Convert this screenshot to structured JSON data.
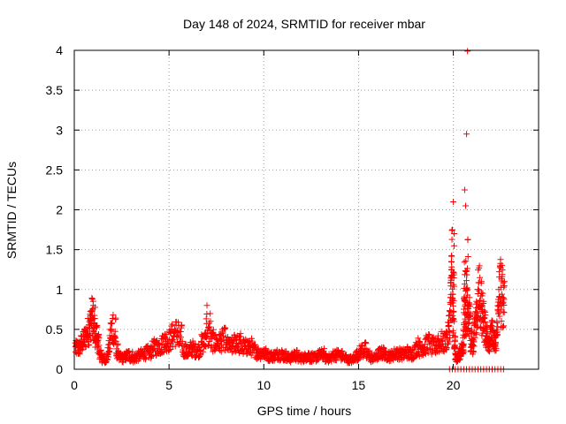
{
  "chart_data": {
    "type": "scatter",
    "title": "Day 148 of 2024, SRMTID for receiver mbar",
    "xlabel": "GPS time / hours",
    "ylabel": "SRMTID / TECUs",
    "xlim": [
      0,
      24.5
    ],
    "ylim": [
      0,
      4
    ],
    "xticks": [
      0,
      5,
      10,
      15,
      20
    ],
    "xtick_labels": [
      "0",
      "5",
      "10",
      "15",
      "20"
    ],
    "yticks": [
      0,
      0.5,
      1,
      1.5,
      2,
      2.5,
      3,
      3.5,
      4
    ],
    "ytick_labels": [
      "0",
      "0.5",
      "1",
      "1.5",
      "2",
      "2.5",
      "3",
      "3.5",
      "4"
    ],
    "grid": true,
    "marker": "+",
    "color": "#ff0000",
    "series": [
      {
        "name": "SRMTID",
        "x": [
          0.05,
          0.2,
          0.35,
          0.5,
          0.65,
          0.8,
          0.9,
          1.0,
          1.1,
          1.2,
          1.3,
          1.45,
          1.6,
          1.75,
          1.9,
          2.05,
          2.2,
          2.35,
          2.5,
          2.7,
          2.9,
          3.1,
          3.3,
          3.5,
          3.7,
          3.9,
          4.1,
          4.3,
          4.5,
          4.7,
          4.9,
          5.1,
          5.3,
          5.5,
          5.7,
          5.9,
          6.1,
          6.3,
          6.5,
          6.7,
          6.9,
          7.0,
          7.2,
          7.4,
          7.6,
          7.8,
          8.0,
          8.2,
          8.4,
          8.6,
          8.8,
          9.0,
          9.2,
          9.4,
          9.6,
          9.8,
          10.0,
          10.2,
          10.4,
          10.6,
          10.8,
          11.0,
          11.2,
          11.4,
          11.6,
          11.8,
          12.0,
          12.2,
          12.4,
          12.6,
          12.8,
          13.0,
          13.2,
          13.4,
          13.6,
          13.8,
          14.0,
          14.2,
          14.4,
          14.6,
          14.8,
          15.0,
          15.2,
          15.4,
          15.6,
          15.8,
          16.0,
          16.2,
          16.4,
          16.6,
          16.8,
          17.0,
          17.2,
          17.4,
          17.6,
          17.8,
          18.0,
          18.2,
          18.4,
          18.6,
          18.8,
          19.0,
          19.2,
          19.4,
          19.6,
          19.75,
          19.85,
          19.9,
          19.95,
          20.0,
          20.05,
          20.1,
          20.2,
          20.3,
          20.4,
          20.5,
          20.55,
          20.6,
          20.65,
          20.7,
          20.75,
          20.8,
          20.9,
          21.0,
          21.1,
          21.2,
          21.3,
          21.4,
          21.5,
          21.6,
          21.7,
          21.8,
          21.9,
          22.0,
          22.1,
          22.2,
          22.3,
          22.4,
          22.5,
          22.6,
          22.7
        ],
        "y": [
          0.33,
          0.28,
          0.35,
          0.42,
          0.5,
          0.6,
          0.72,
          0.8,
          0.45,
          0.55,
          0.3,
          0.18,
          0.12,
          0.2,
          0.5,
          0.68,
          0.35,
          0.2,
          0.15,
          0.18,
          0.22,
          0.15,
          0.18,
          0.2,
          0.25,
          0.22,
          0.28,
          0.35,
          0.3,
          0.42,
          0.38,
          0.45,
          0.5,
          0.55,
          0.35,
          0.22,
          0.28,
          0.3,
          0.25,
          0.35,
          0.4,
          0.8,
          0.38,
          0.42,
          0.35,
          0.45,
          0.4,
          0.3,
          0.35,
          0.42,
          0.32,
          0.3,
          0.35,
          0.28,
          0.25,
          0.22,
          0.25,
          0.2,
          0.18,
          0.2,
          0.22,
          0.2,
          0.18,
          0.15,
          0.22,
          0.18,
          0.15,
          0.18,
          0.2,
          0.15,
          0.18,
          0.22,
          0.2,
          0.15,
          0.18,
          0.22,
          0.2,
          0.18,
          0.15,
          0.12,
          0.18,
          0.22,
          0.3,
          0.25,
          0.18,
          0.15,
          0.2,
          0.25,
          0.22,
          0.18,
          0.2,
          0.25,
          0.2,
          0.22,
          0.25,
          0.2,
          0.3,
          0.35,
          0.28,
          0.4,
          0.35,
          0.3,
          0.42,
          0.35,
          0.4,
          0.55,
          0.9,
          1.35,
          1.75,
          2.1,
          0.6,
          0.2,
          0.15,
          0.2,
          0.25,
          0.3,
          0.5,
          2.25,
          2.05,
          2.95,
          3.99,
          0.8,
          0.7,
          0.3,
          0.55,
          0.65,
          1.0,
          1.15,
          0.75,
          0.85,
          0.5,
          0.45,
          0.38,
          0.55,
          0.48,
          0.3,
          0.6,
          1.0,
          1.27,
          0.9,
          1.1
        ],
        "zero_markers_x": [
          19.8,
          19.95,
          20.1,
          20.25,
          20.4,
          20.55,
          20.7,
          20.85,
          21.0,
          21.15,
          21.3,
          21.45,
          21.6,
          21.75,
          21.9,
          22.05,
          22.2,
          22.35,
          22.5,
          22.65
        ]
      }
    ]
  }
}
